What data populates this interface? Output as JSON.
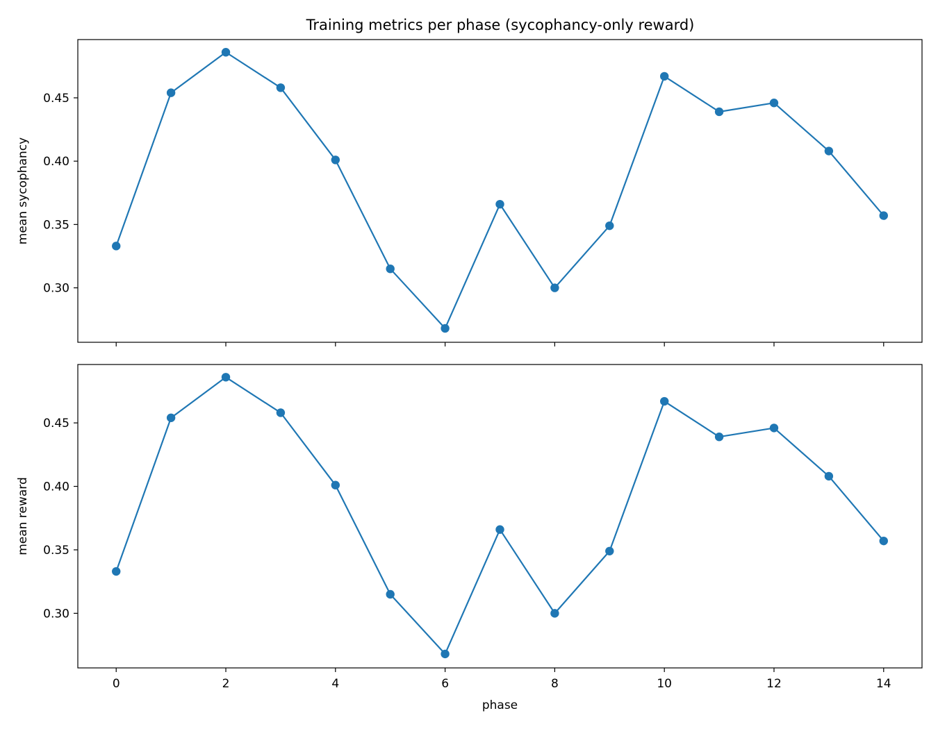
{
  "figure": {
    "title": "Training metrics per phase (sycophancy-only reward)"
  },
  "colors": {
    "series": "#1f77b4",
    "axes": "#000000",
    "background": "#ffffff"
  },
  "chart_data": [
    {
      "type": "line",
      "title": "Training metrics per phase (sycophancy-only reward)",
      "xlabel": "",
      "ylabel": "mean sycophancy",
      "x": [
        0,
        1,
        2,
        3,
        4,
        5,
        6,
        7,
        8,
        9,
        10,
        11,
        12,
        13,
        14
      ],
      "series": [
        {
          "values": [
            0.333,
            0.454,
            0.486,
            0.458,
            0.401,
            0.315,
            0.268,
            0.366,
            0.3,
            0.349,
            0.467,
            0.439,
            0.446,
            0.408,
            0.357
          ]
        }
      ],
      "xlim": [
        -0.7,
        14.7
      ],
      "ylim": [
        0.257,
        0.496
      ],
      "xticks": [
        0,
        2,
        4,
        6,
        8,
        10,
        12,
        14
      ],
      "xtick_labels_visible": false,
      "yticks": [
        0.3,
        0.35,
        0.4,
        0.45
      ],
      "ytick_labels": [
        "0.30",
        "0.35",
        "0.40",
        "0.45"
      ],
      "marker": "circle",
      "grid": false,
      "legend": "none"
    },
    {
      "type": "line",
      "title": "",
      "xlabel": "phase",
      "ylabel": "mean reward",
      "x": [
        0,
        1,
        2,
        3,
        4,
        5,
        6,
        7,
        8,
        9,
        10,
        11,
        12,
        13,
        14
      ],
      "series": [
        {
          "values": [
            0.333,
            0.454,
            0.486,
            0.458,
            0.401,
            0.315,
            0.268,
            0.366,
            0.3,
            0.349,
            0.467,
            0.439,
            0.446,
            0.408,
            0.357
          ]
        }
      ],
      "xlim": [
        -0.7,
        14.7
      ],
      "ylim": [
        0.257,
        0.496
      ],
      "xticks": [
        0,
        2,
        4,
        6,
        8,
        10,
        12,
        14
      ],
      "xtick_labels": [
        "0",
        "2",
        "4",
        "6",
        "8",
        "10",
        "12",
        "14"
      ],
      "xtick_labels_visible": true,
      "yticks": [
        0.3,
        0.35,
        0.4,
        0.45
      ],
      "ytick_labels": [
        "0.30",
        "0.35",
        "0.40",
        "0.45"
      ],
      "marker": "circle",
      "grid": false,
      "legend": "none"
    }
  ]
}
